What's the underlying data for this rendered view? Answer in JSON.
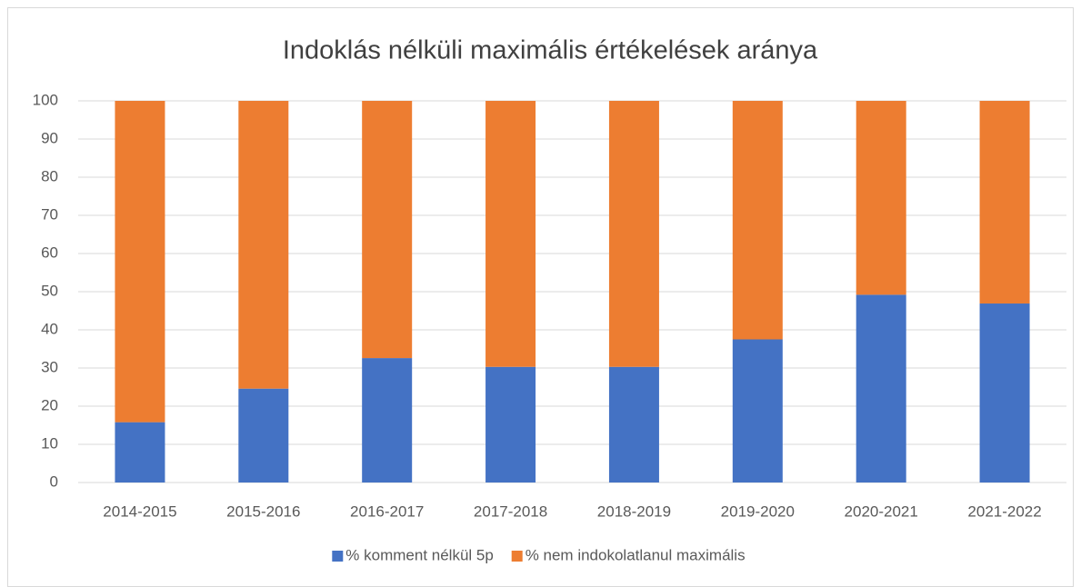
{
  "chart_data": {
    "type": "bar",
    "stacked": true,
    "title": "Indoklás nélküli maximális értékelések aránya",
    "categories": [
      "2014-2015",
      "2015-2016",
      "2016-2017",
      "2017-2018",
      "2018-2019",
      "2019-2020",
      "2020-2021",
      "2021-2022"
    ],
    "series": [
      {
        "name": "% komment nélkül 5p",
        "color": "#4472c4",
        "values": [
          15.8,
          24.6,
          32.6,
          30.3,
          30.3,
          37.5,
          49.2,
          46.9
        ]
      },
      {
        "name": "% nem indokolatlanul maximális",
        "color": "#ed7d31",
        "values": [
          84.2,
          75.4,
          67.4,
          69.7,
          69.7,
          62.5,
          50.8,
          53.1
        ]
      }
    ],
    "ylim": [
      0,
      100
    ],
    "yticks": [
      0,
      10,
      20,
      30,
      40,
      50,
      60,
      70,
      80,
      90,
      100
    ],
    "grid": true,
    "legend": "bottom"
  }
}
